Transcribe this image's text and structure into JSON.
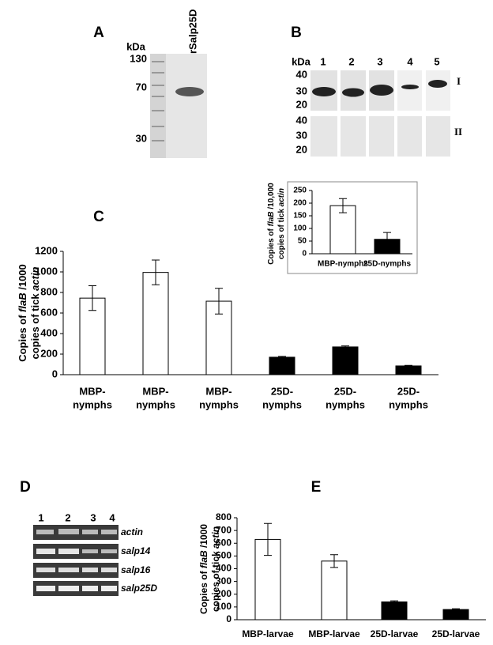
{
  "panel_a": {
    "label": "A",
    "marker_unit": "kDa",
    "markers": [
      130,
      70,
      30
    ],
    "lane_label": "rSalp25D"
  },
  "panel_b": {
    "label": "B",
    "marker_unit": "kDa",
    "lanes": [
      1,
      2,
      3,
      4,
      5
    ],
    "markers_top": [
      40,
      30,
      20
    ],
    "markers_bottom": [
      40,
      30,
      20
    ],
    "row_labels": [
      "I",
      "II"
    ]
  },
  "panel_d": {
    "label": "D",
    "lanes": [
      1,
      2,
      3,
      4
    ],
    "genes": [
      "actin",
      "salp14",
      "salp16",
      "salp25D"
    ]
  },
  "chart_data": [
    {
      "type": "bar",
      "panel": "C",
      "ylabel": [
        [
          "Copies of ",
          "flaB",
          " /1000"
        ],
        [
          "copies of tick ",
          "actin"
        ]
      ],
      "categories": [
        [
          "MBP-",
          "nymphs"
        ],
        [
          "MBP-",
          "nymphs"
        ],
        [
          "MBP-",
          "nymphs"
        ],
        [
          "25D-",
          "nymphs"
        ],
        [
          "25D-",
          "nymphs"
        ],
        [
          "25D-",
          "nymphs"
        ]
      ],
      "values": [
        745,
        995,
        715,
        170,
        270,
        85
      ],
      "errors": [
        120,
        120,
        125,
        8,
        10,
        5
      ],
      "colors": [
        "#ffffff",
        "#ffffff",
        "#ffffff",
        "#000000",
        "#000000",
        "#000000"
      ],
      "ylim": [
        0,
        1200
      ],
      "yticks": [
        0,
        200,
        400,
        600,
        800,
        1000,
        1200
      ]
    },
    {
      "type": "bar",
      "ylabel": [
        [
          "Copies of ",
          "flaB",
          " /10,000"
        ],
        [
          "copies of tick ",
          "actin"
        ]
      ],
      "categories": [
        [
          "MBP-nymphs"
        ],
        [
          "25D-nymphs"
        ]
      ],
      "values": [
        190,
        57
      ],
      "errors": [
        28,
        27
      ],
      "colors": [
        "#ffffff",
        "#000000"
      ],
      "ylim": [
        0,
        250
      ],
      "yticks": [
        0,
        50,
        100,
        150,
        200,
        250
      ]
    },
    {
      "type": "bar",
      "panel": "E",
      "ylabel": [
        [
          "Copies of ",
          "flaB",
          " /1000"
        ],
        [
          "copies of tick ",
          "actin"
        ]
      ],
      "categories": [
        [
          "MBP-larvae"
        ],
        [
          "MBP-larvae"
        ],
        [
          "25D-larvae"
        ],
        [
          "25D-larvae"
        ]
      ],
      "values": [
        630,
        460,
        140,
        80
      ],
      "errors": [
        125,
        50,
        8,
        6
      ],
      "colors": [
        "#ffffff",
        "#ffffff",
        "#000000",
        "#000000"
      ],
      "ylim": [
        0,
        800
      ],
      "yticks": [
        0,
        100,
        200,
        300,
        400,
        500,
        600,
        700,
        800
      ]
    }
  ]
}
